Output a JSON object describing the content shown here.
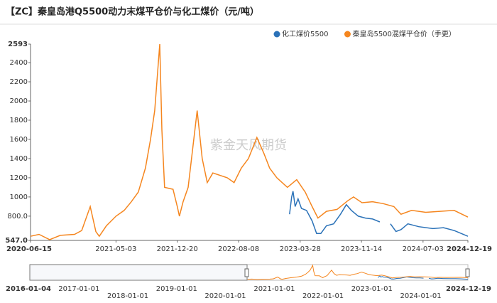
{
  "chart_data": {
    "type": "line",
    "title": "【ZC】秦皇岛港Q5500动力末煤平仓价与化工煤价（元/吨）",
    "watermark": "紫金天风期货",
    "legend_position": "top-right",
    "xlim": [
      "2020-06-15",
      "2024-12-19"
    ],
    "xticks": [
      "2020-06-15",
      "2021-05-03",
      "2021-12-20",
      "2022-08-08",
      "2023-03-28",
      "2023-11-14",
      "2024-07-03",
      "2024-12-19"
    ],
    "ylim": [
      547,
      2593
    ],
    "yticks": [
      {
        "value": 547,
        "label": "547.0"
      },
      {
        "value": 800,
        "label": "800.0"
      },
      1000,
      1200,
      1400,
      1600,
      1800,
      2000,
      2200,
      2400,
      2593
    ],
    "series": [
      {
        "name": "化工煤价5500",
        "color": "#2b72b8",
        "x": [
          "2023-02-16",
          "2023-02-24",
          "2023-03-01",
          "2023-03-09",
          "2023-03-20",
          "2023-04-02",
          "2023-04-21",
          "2023-05-12",
          "2023-05-29",
          "2023-06-14",
          "2023-07-05",
          "2023-08-01",
          "2023-08-27",
          "2023-09-18",
          "2023-10-07",
          "2023-11-02",
          "2023-11-29",
          "2023-12-26",
          "2024-01-22",
          "2024-02-05",
          "2024-03-02",
          "2024-03-23",
          "2024-04-11",
          "2024-05-07",
          "2024-06-17",
          "2024-08-09",
          "2024-09-18",
          "2024-10-28",
          "2024-12-19"
        ],
        "values": [
          820,
          1000,
          1060,
          900,
          980,
          880,
          860,
          750,
          620,
          620,
          700,
          720,
          820,
          920,
          860,
          800,
          780,
          770,
          740,
          null,
          720,
          640,
          660,
          720,
          690,
          670,
          680,
          650,
          590
        ]
      },
      {
        "name": "秦皇岛5500混煤平仓价（手更）",
        "color": "#f5861f",
        "x": [
          "2020-06-15",
          "2020-07-17",
          "2020-08-26",
          "2020-10-05",
          "2020-11-28",
          "2020-12-25",
          "2021-01-26",
          "2021-02-16",
          "2021-03-01",
          "2021-03-28",
          "2021-05-03",
          "2021-06-03",
          "2021-06-30",
          "2021-07-26",
          "2021-08-22",
          "2021-09-10",
          "2021-09-26",
          "2021-10-07",
          "2021-10-15",
          "2021-10-23",
          "2021-11-02",
          "2021-12-04",
          "2021-12-20",
          "2021-12-28",
          "2022-01-11",
          "2022-01-30",
          "2022-03-05",
          "2022-03-24",
          "2022-04-12",
          "2022-05-03",
          "2022-06-26",
          "2022-07-22",
          "2022-08-18",
          "2022-09-14",
          "2022-10-16",
          "2022-11-12",
          "2022-12-03",
          "2022-12-30",
          "2023-02-08",
          "2023-03-15",
          "2023-04-16",
          "2023-05-12",
          "2023-06-03",
          "2023-07-05",
          "2023-08-14",
          "2023-09-23",
          "2023-10-15",
          "2023-11-16",
          "2023-12-26",
          "2024-02-04",
          "2024-03-15",
          "2024-04-11",
          "2024-05-21",
          "2024-07-13",
          "2024-09-05",
          "2024-10-28",
          "2024-12-19"
        ],
        "values": [
          590,
          610,
          555,
          600,
          610,
          650,
          900,
          640,
          590,
          700,
          800,
          860,
          950,
          1050,
          1300,
          1600,
          1900,
          2300,
          2593,
          1700,
          1100,
          1080,
          900,
          800,
          950,
          1100,
          1900,
          1400,
          1150,
          1250,
          1200,
          1150,
          1300,
          1400,
          1620,
          1450,
          1300,
          1200,
          1100,
          1180,
          1050,
          900,
          780,
          850,
          870,
          960,
          1000,
          940,
          950,
          930,
          900,
          820,
          860,
          840,
          850,
          860,
          790
        ]
      }
    ],
    "navigator": {
      "xlim": [
        "2016-01-04",
        "2024-12-19"
      ],
      "xticks": [
        "2017-01-01",
        "2018-01-01",
        "2019-01-01",
        "2020-01-01",
        "2021-01-01",
        "2022-01-01",
        "2023-01-01",
        "2024-01-01"
      ]
    }
  }
}
